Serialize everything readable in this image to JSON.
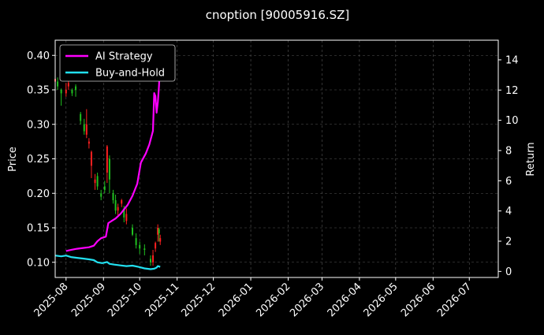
{
  "chart_data": {
    "type": "line",
    "title": "cnoption [90005916.SZ]",
    "ylabel_left": "Price",
    "ylabel_right": "Return",
    "x_ticks": [
      "2025-08",
      "2025-09",
      "2025-10",
      "2025-11",
      "2025-12",
      "2026-01",
      "2026-02",
      "2026-03",
      "2026-04",
      "2026-05",
      "2026-06",
      "2026-07"
    ],
    "x_range": [
      "2025-07-23",
      "2026-07-25"
    ],
    "y_left_ticks": [
      "0.10",
      "0.15",
      "0.20",
      "0.25",
      "0.30",
      "0.35",
      "0.40"
    ],
    "y_left_range": [
      0.078,
      0.422
    ],
    "y_right_ticks": [
      "0",
      "2",
      "4",
      "6",
      "8",
      "10",
      "12",
      "14"
    ],
    "y_right_range": [
      -0.4,
      15.3
    ],
    "grid": true,
    "legend_position": "top-left",
    "series": [
      {
        "name": "AI Strategy",
        "color": "#ff00ff",
        "axis": "right",
        "points": [
          [
            "2025-08-01",
            1.35
          ],
          [
            "2025-08-05",
            1.42
          ],
          [
            "2025-08-10",
            1.5
          ],
          [
            "2025-08-15",
            1.55
          ],
          [
            "2025-08-20",
            1.6
          ],
          [
            "2025-08-24",
            1.7
          ],
          [
            "2025-08-27",
            2.0
          ],
          [
            "2025-08-30",
            2.2
          ],
          [
            "2025-09-03",
            2.3
          ],
          [
            "2025-09-05",
            3.2
          ],
          [
            "2025-09-08",
            3.35
          ],
          [
            "2025-09-11",
            3.5
          ],
          [
            "2025-09-15",
            3.8
          ],
          [
            "2025-09-18",
            4.1
          ],
          [
            "2025-09-21",
            4.4
          ],
          [
            "2025-09-25",
            5.0
          ],
          [
            "2025-09-29",
            5.8
          ],
          [
            "2025-10-02",
            7.2
          ],
          [
            "2025-10-06",
            7.8
          ],
          [
            "2025-10-09",
            8.4
          ],
          [
            "2025-10-12",
            9.3
          ],
          [
            "2025-10-13",
            11.8
          ],
          [
            "2025-10-14",
            11.6
          ],
          [
            "2025-10-15",
            10.5
          ],
          [
            "2025-10-16",
            11.2
          ],
          [
            "2025-10-17",
            12.3
          ],
          [
            "2025-10-18",
            14.3
          ]
        ]
      },
      {
        "name": "Buy-and-Hold",
        "color": "#22e0f0",
        "axis": "right",
        "points": [
          [
            "2025-07-23",
            1.05
          ],
          [
            "2025-07-28",
            1.0
          ],
          [
            "2025-08-01",
            1.05
          ],
          [
            "2025-08-05",
            0.95
          ],
          [
            "2025-08-10",
            0.9
          ],
          [
            "2025-08-15",
            0.85
          ],
          [
            "2025-08-20",
            0.8
          ],
          [
            "2025-08-24",
            0.75
          ],
          [
            "2025-08-27",
            0.6
          ],
          [
            "2025-08-31",
            0.55
          ],
          [
            "2025-09-04",
            0.62
          ],
          [
            "2025-09-06",
            0.5
          ],
          [
            "2025-09-10",
            0.45
          ],
          [
            "2025-09-15",
            0.4
          ],
          [
            "2025-09-20",
            0.35
          ],
          [
            "2025-09-25",
            0.38
          ],
          [
            "2025-09-30",
            0.3
          ],
          [
            "2025-10-05",
            0.2
          ],
          [
            "2025-10-10",
            0.15
          ],
          [
            "2025-10-13",
            0.18
          ],
          [
            "2025-10-15",
            0.25
          ],
          [
            "2025-10-16",
            0.35
          ],
          [
            "2025-10-18",
            0.3
          ]
        ]
      }
    ],
    "price_ticks": [
      {
        "date": "2025-07-23",
        "open": 0.362,
        "close": 0.366,
        "high": 0.368,
        "low": 0.352
      },
      {
        "date": "2025-07-25",
        "open": 0.362,
        "close": 0.355,
        "high": 0.368,
        "low": 0.35
      },
      {
        "date": "2025-07-28",
        "open": 0.35,
        "close": 0.345,
        "high": 0.352,
        "low": 0.327
      },
      {
        "date": "2025-08-01",
        "open": 0.345,
        "close": 0.35,
        "high": 0.36,
        "low": 0.34
      },
      {
        "date": "2025-08-03",
        "open": 0.355,
        "close": 0.36,
        "high": 0.365,
        "low": 0.35
      },
      {
        "date": "2025-08-06",
        "open": 0.35,
        "close": 0.345,
        "high": 0.352,
        "low": 0.341
      },
      {
        "date": "2025-08-09",
        "open": 0.355,
        "close": 0.35,
        "high": 0.358,
        "low": 0.34
      },
      {
        "date": "2025-08-13",
        "open": 0.315,
        "close": 0.305,
        "high": 0.318,
        "low": 0.3
      },
      {
        "date": "2025-08-16",
        "open": 0.3,
        "close": 0.29,
        "high": 0.308,
        "low": 0.285
      },
      {
        "date": "2025-08-18",
        "open": 0.285,
        "close": 0.3,
        "high": 0.322,
        "low": 0.28
      },
      {
        "date": "2025-08-20",
        "open": 0.272,
        "close": 0.275,
        "high": 0.28,
        "low": 0.265
      },
      {
        "date": "2025-08-22",
        "open": 0.24,
        "close": 0.26,
        "high": 0.262,
        "low": 0.222
      },
      {
        "date": "2025-08-25",
        "open": 0.215,
        "close": 0.22,
        "high": 0.228,
        "low": 0.205
      },
      {
        "date": "2025-08-27",
        "open": 0.225,
        "close": 0.21,
        "high": 0.23,
        "low": 0.205
      },
      {
        "date": "2025-08-30",
        "open": 0.2,
        "close": 0.195,
        "high": 0.205,
        "low": 0.19
      },
      {
        "date": "2025-09-02",
        "open": 0.21,
        "close": 0.205,
        "high": 0.218,
        "low": 0.2
      },
      {
        "date": "2025-09-04",
        "open": 0.23,
        "close": 0.268,
        "high": 0.27,
        "low": 0.215
      },
      {
        "date": "2025-09-06",
        "open": 0.25,
        "close": 0.22,
        "high": 0.255,
        "low": 0.2
      },
      {
        "date": "2025-09-09",
        "open": 0.2,
        "close": 0.19,
        "high": 0.205,
        "low": 0.185
      },
      {
        "date": "2025-09-11",
        "open": 0.19,
        "close": 0.175,
        "high": 0.198,
        "low": 0.17
      },
      {
        "date": "2025-09-13",
        "open": 0.175,
        "close": 0.18,
        "high": 0.185,
        "low": 0.168
      },
      {
        "date": "2025-09-16",
        "open": 0.185,
        "close": 0.19,
        "high": 0.192,
        "low": 0.18
      },
      {
        "date": "2025-09-18",
        "open": 0.178,
        "close": 0.165,
        "high": 0.182,
        "low": 0.158
      },
      {
        "date": "2025-09-20",
        "open": 0.16,
        "close": 0.17,
        "high": 0.178,
        "low": 0.155
      },
      {
        "date": "2025-09-25",
        "open": 0.15,
        "close": 0.14,
        "high": 0.155,
        "low": 0.138
      },
      {
        "date": "2025-09-28",
        "open": 0.135,
        "close": 0.125,
        "high": 0.142,
        "low": 0.12
      },
      {
        "date": "2025-10-01",
        "open": 0.125,
        "close": 0.12,
        "high": 0.13,
        "low": 0.112
      },
      {
        "date": "2025-10-05",
        "open": 0.12,
        "close": 0.118,
        "high": 0.126,
        "low": 0.11
      },
      {
        "date": "2025-10-10",
        "open": 0.105,
        "close": 0.1,
        "high": 0.11,
        "low": 0.095
      },
      {
        "date": "2025-10-12",
        "open": 0.1,
        "close": 0.11,
        "high": 0.118,
        "low": 0.095
      },
      {
        "date": "2025-10-14",
        "open": 0.12,
        "close": 0.128,
        "high": 0.13,
        "low": 0.115
      },
      {
        "date": "2025-10-16",
        "open": 0.14,
        "close": 0.15,
        "high": 0.155,
        "low": 0.13
      },
      {
        "date": "2025-10-17",
        "open": 0.148,
        "close": 0.142,
        "high": 0.15,
        "low": 0.13
      },
      {
        "date": "2025-10-18",
        "open": 0.13,
        "close": 0.135,
        "high": 0.14,
        "low": 0.125
      }
    ],
    "up_color": "#ff2020",
    "down_color": "#20c020"
  }
}
